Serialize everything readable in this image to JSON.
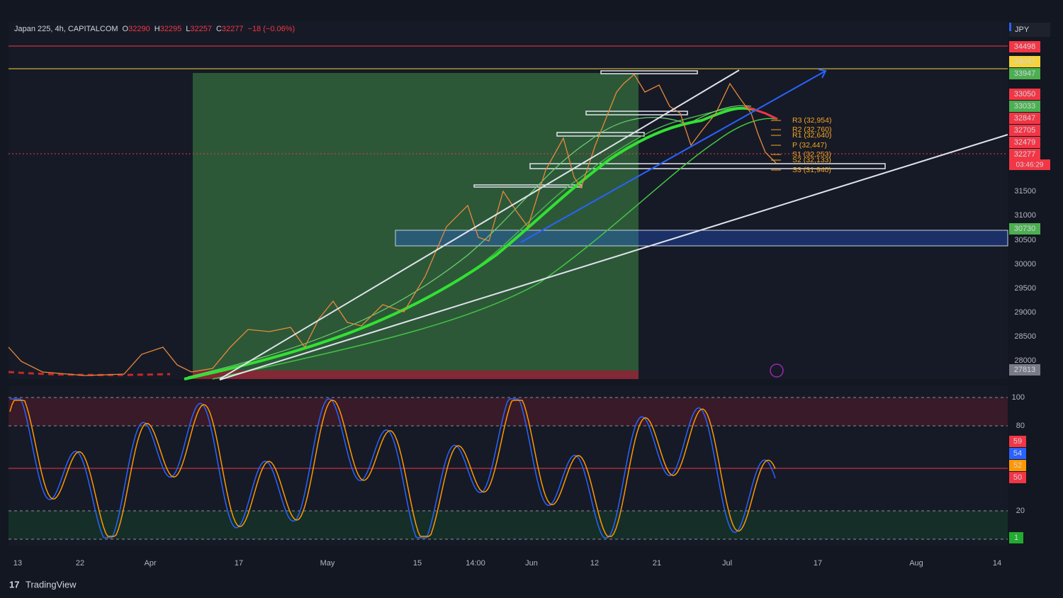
{
  "header": {
    "symbol": "Japan 225, 4h, CAPITALCOM",
    "ohlc": [
      {
        "label": "O",
        "value": "32290"
      },
      {
        "label": "H",
        "value": "32295"
      },
      {
        "label": "L",
        "value": "32257"
      },
      {
        "label": "C",
        "value": "32277"
      }
    ],
    "change": "−18 (−0.06%)"
  },
  "currency": "JPY",
  "price_axis": {
    "ticks": [
      "31500",
      "31000",
      "30500",
      "30000",
      "29500",
      "29000",
      "28500",
      "28000"
    ]
  },
  "price_labels": [
    {
      "text": "34498",
      "color": "#f23645"
    },
    {
      "text": "34047",
      "color": "#f5d33a"
    },
    {
      "text": "33947",
      "color": "#4caf50"
    },
    {
      "text": "33050",
      "color": "#f23645"
    },
    {
      "text": "33033",
      "color": "#4caf50"
    },
    {
      "text": "32847",
      "color": "#f23645"
    },
    {
      "text": "32705",
      "color": "#f23645"
    },
    {
      "text": "32479",
      "color": "#f23645"
    },
    {
      "text": "32277",
      "color": "#f23645"
    },
    {
      "text": "30730",
      "color": "#4caf50"
    },
    {
      "text": "27813",
      "color": "#787b86"
    }
  ],
  "timer": "03:46:29",
  "pivots": [
    "R3 (32,954)",
    "R2 (32,760)",
    "R1 (32,640)",
    "P (32,447)",
    "S1 (32,253)",
    "S2 (32,133)",
    "S3 (31,940)"
  ],
  "oscillator_axis": {
    "ticks": [
      "100",
      "80",
      "20"
    ]
  },
  "oscillator_labels": [
    {
      "text": "59",
      "color": "#f23645"
    },
    {
      "text": "54",
      "color": "#2962ff"
    },
    {
      "text": "52",
      "color": "#ff9800"
    },
    {
      "text": "50",
      "color": "#f23645"
    },
    {
      "text": "1",
      "color": "#22ab2f"
    }
  ],
  "dates": [
    "13",
    "22",
    "Apr",
    "17",
    "May",
    "15",
    "14:00",
    "Jun",
    "12",
    "21",
    "Jul",
    "17",
    "Aug",
    "14"
  ],
  "brand": "TradingView"
}
